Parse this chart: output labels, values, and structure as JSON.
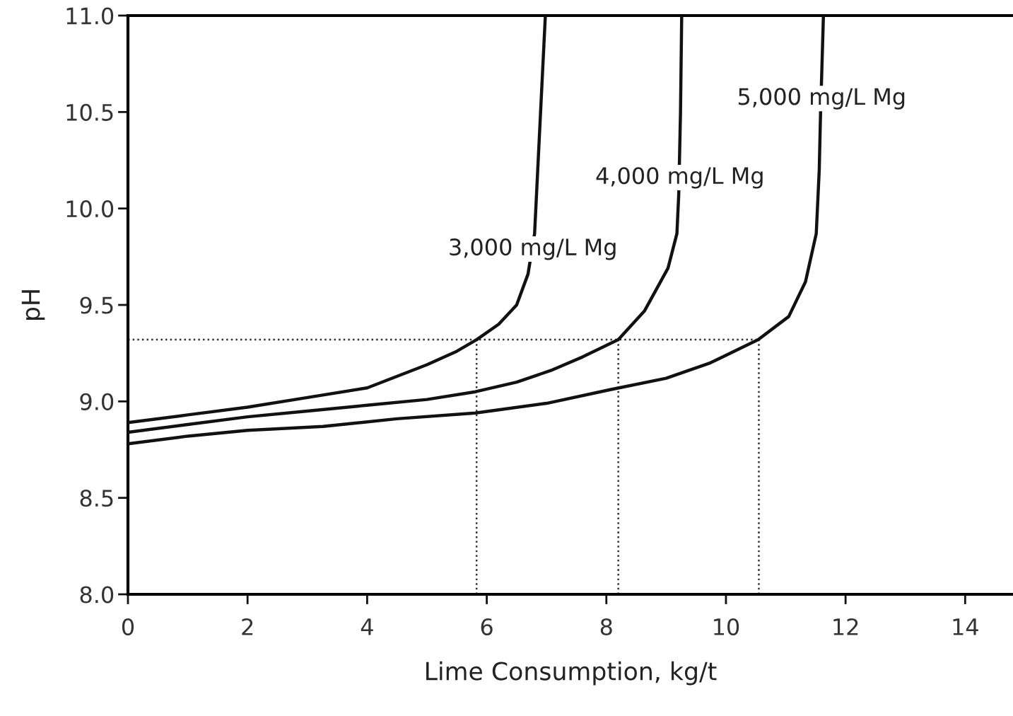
{
  "chart_data": {
    "type": "line",
    "xlabel": "Lime Consumption, kg/t",
    "ylabel": "pH",
    "xlim": [
      0,
      14.8
    ],
    "ylim": [
      8.0,
      11.0
    ],
    "xticks": [
      0,
      2,
      4,
      6,
      8,
      10,
      12,
      14
    ],
    "yticks": [
      {
        "value": 8.0,
        "label": "8.0"
      },
      {
        "value": 8.5,
        "label": "8.5"
      },
      {
        "value": 9.0,
        "label": "9.0"
      },
      {
        "value": 9.5,
        "label": "9.5"
      },
      {
        "value": 10.0,
        "label": "10.0"
      },
      {
        "value": 10.5,
        "label": "10.5"
      },
      {
        "value": 11.0,
        "label": "11.0"
      }
    ],
    "grid": false,
    "legend": false,
    "marker": "none",
    "line_style": "solid",
    "series": [
      {
        "color": "#111111",
        "x": [
          0,
          1,
          2,
          3,
          4,
          5,
          5.5,
          5.83,
          6.2,
          6.5,
          6.69,
          6.8,
          6.9,
          6.98
        ],
        "values": [
          8.89,
          8.93,
          8.97,
          9.02,
          9.07,
          9.19,
          9.26,
          9.32,
          9.4,
          9.5,
          9.66,
          9.87,
          10.5,
          11.0
        ]
      },
      {
        "color": "#111111",
        "x": [
          0,
          1,
          2,
          3,
          4,
          5,
          5.81,
          6.5,
          7.07,
          7.6,
          8.2,
          8.64,
          9.03,
          9.18,
          9.21,
          9.24,
          9.26
        ],
        "values": [
          8.84,
          8.88,
          8.92,
          8.95,
          8.98,
          9.01,
          9.05,
          9.1,
          9.16,
          9.23,
          9.32,
          9.47,
          9.69,
          9.87,
          10.07,
          10.5,
          11.0
        ]
      },
      {
        "color": "#111111",
        "x": [
          0,
          1,
          2,
          3.26,
          4.5,
          5.81,
          7,
          8.05,
          9,
          9.74,
          10.54,
          11.05,
          11.33,
          11.51,
          11.56,
          11.58,
          11.63
        ],
        "values": [
          8.78,
          8.82,
          8.85,
          8.87,
          8.91,
          8.94,
          8.99,
          9.06,
          9.12,
          9.2,
          9.32,
          9.44,
          9.62,
          9.87,
          10.2,
          10.47,
          11.0
        ]
      }
    ],
    "ref_lines": [
      {
        "axis": "y",
        "value": 9.32,
        "color": "#333333",
        "line_style": "dotted"
      },
      {
        "axis": "x",
        "value": 5.83,
        "color": "#333333",
        "line_style": "dotted"
      },
      {
        "axis": "x",
        "value": 8.2,
        "color": "#333333",
        "line_style": "dotted"
      },
      {
        "axis": "x",
        "value": 10.55,
        "color": "#333333",
        "line_style": "dotted"
      }
    ],
    "annotations": [
      {
        "text": "3,000 mg/L Mg",
        "x": 6.77,
        "y": 9.79
      },
      {
        "text": "4,000 mg/L Mg",
        "x": 9.23,
        "y": 10.16
      },
      {
        "text": "5,000 mg/L Mg",
        "x": 11.6,
        "y": 10.57
      }
    ]
  }
}
